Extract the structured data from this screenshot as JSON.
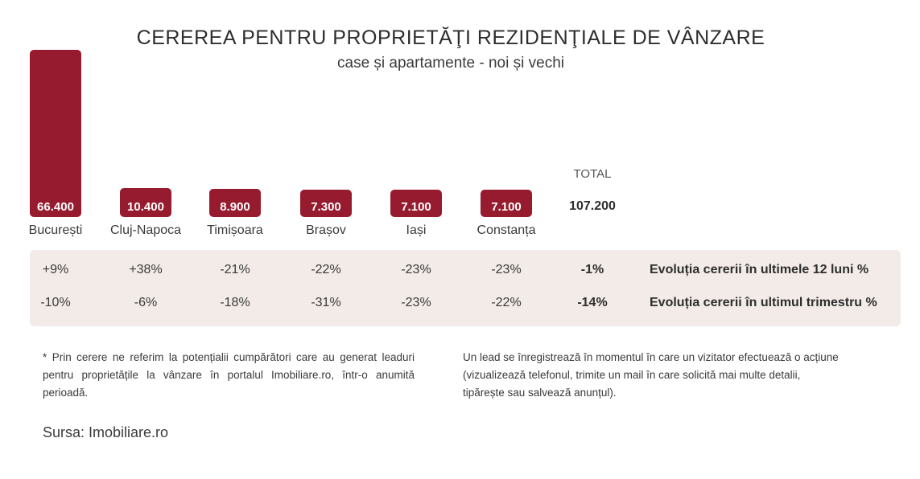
{
  "chart_data": {
    "type": "bar",
    "title": "CEREREA PENTRU PROPRIETĂŢI REZIDENŢIALE DE VÂNZARE",
    "subtitle": "case și apartamente - noi și vechi",
    "categories": [
      "București",
      "Cluj-Napoca",
      "Timișoara",
      "Brașov",
      "Iași",
      "Constanța"
    ],
    "values": [
      66400,
      10400,
      8900,
      7300,
      7100,
      7100
    ],
    "value_labels": [
      "66.400",
      "10.400",
      "8.900",
      "7.300",
      "7.100",
      "7.100"
    ],
    "bar_color": "#971b2f",
    "total": {
      "label": "TOTAL",
      "value": "107.200"
    }
  },
  "table": {
    "background": "#f2ebe7",
    "rows": [
      {
        "label": "Evoluția cererii în ultimele 12 luni %",
        "values": [
          "+9%",
          "+38%",
          "-21%",
          "-22%",
          "-23%",
          "-23%"
        ],
        "total": "-1%"
      },
      {
        "label": "Evoluția cererii în ultimul trimestru %",
        "values": [
          "-10%",
          "-6%",
          "-18%",
          "-31%",
          "-23%",
          "-22%"
        ],
        "total": "-14%"
      }
    ]
  },
  "notes": {
    "left": "* Prin cerere ne referim la potențialii cumpărători care au generat leaduri pentru proprietățile la vânzare în portalul Imobiliare.ro, într-o anumită perioadă.",
    "right": "Un lead se înregistrează în momentul în care un vizitator efectuează o acțiune (vizualizează telefonul, trimite un mail în care solicită mai multe detalii, tipărește sau salvează anunțul)."
  },
  "source": "Sursa: Imobiliare.ro"
}
